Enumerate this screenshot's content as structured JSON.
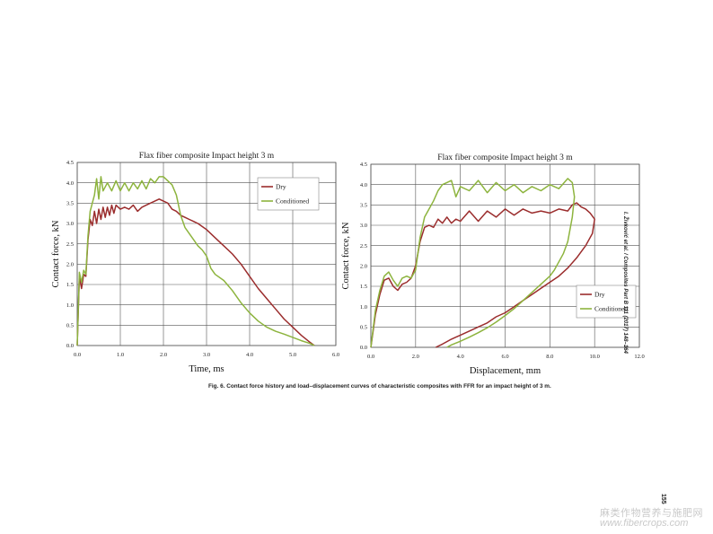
{
  "chart_data": [
    {
      "type": "line",
      "title": "Flax fiber composite Impact height 3 m",
      "xlabel": "Time, ms",
      "ylabel": "Contact force, kN",
      "xlim": [
        0,
        6
      ],
      "ylim": [
        0,
        4.5
      ],
      "xticks": [
        "0.0",
        "1.0",
        "2.0",
        "3.0",
        "4.0",
        "5.0",
        "6.0"
      ],
      "yticks": [
        "0.0",
        "0.5",
        "1.0",
        "1.5",
        "2.0",
        "2.5",
        "3.0",
        "3.5",
        "4.0",
        "4.5"
      ],
      "grid": true,
      "legend": "top-right",
      "series": [
        {
          "name": "Dry",
          "color": "#9b2d2d",
          "x": [
            0,
            0.05,
            0.1,
            0.15,
            0.2,
            0.25,
            0.3,
            0.35,
            0.4,
            0.45,
            0.5,
            0.55,
            0.6,
            0.65,
            0.7,
            0.75,
            0.8,
            0.85,
            0.9,
            1.0,
            1.1,
            1.2,
            1.3,
            1.4,
            1.5,
            1.6,
            1.7,
            1.8,
            1.9,
            2.0,
            2.1,
            2.2,
            2.3,
            2.4,
            2.5,
            2.6,
            2.7,
            2.8,
            3.0,
            3.2,
            3.4,
            3.6,
            3.8,
            4.0,
            4.2,
            4.4,
            4.6,
            4.8,
            5.0,
            5.2,
            5.4,
            5.5
          ],
          "y": [
            0,
            1.7,
            1.4,
            1.75,
            1.7,
            2.6,
            3.1,
            2.95,
            3.3,
            3.0,
            3.35,
            3.1,
            3.4,
            3.15,
            3.4,
            3.2,
            3.45,
            3.25,
            3.45,
            3.35,
            3.4,
            3.35,
            3.45,
            3.3,
            3.4,
            3.45,
            3.5,
            3.55,
            3.6,
            3.55,
            3.5,
            3.35,
            3.3,
            3.2,
            3.15,
            3.1,
            3.05,
            3.0,
            2.85,
            2.65,
            2.45,
            2.25,
            2.0,
            1.7,
            1.4,
            1.15,
            0.9,
            0.65,
            0.45,
            0.25,
            0.08,
            0
          ]
        },
        {
          "name": "Conditioned",
          "color": "#8db43e",
          "x": [
            0,
            0.05,
            0.1,
            0.15,
            0.2,
            0.25,
            0.3,
            0.35,
            0.4,
            0.45,
            0.5,
            0.55,
            0.6,
            0.7,
            0.8,
            0.9,
            1.0,
            1.1,
            1.2,
            1.3,
            1.4,
            1.5,
            1.6,
            1.7,
            1.8,
            1.9,
            2.0,
            2.1,
            2.2,
            2.3,
            2.4,
            2.5,
            2.6,
            2.7,
            2.8,
            2.9,
            3.0,
            3.1,
            3.2,
            3.4,
            3.6,
            3.8,
            4.0,
            4.2,
            4.4,
            4.6,
            4.8,
            5.0,
            5.2,
            5.4,
            5.5
          ],
          "y": [
            0,
            1.8,
            1.55,
            1.85,
            1.75,
            2.7,
            3.3,
            3.5,
            3.7,
            4.1,
            3.6,
            4.15,
            3.8,
            4.0,
            3.8,
            4.05,
            3.8,
            4.0,
            3.8,
            4.0,
            3.85,
            4.05,
            3.85,
            4.1,
            4.0,
            4.15,
            4.15,
            4.05,
            3.95,
            3.7,
            3.2,
            2.9,
            2.75,
            2.6,
            2.45,
            2.35,
            2.2,
            1.9,
            1.75,
            1.6,
            1.35,
            1.05,
            0.8,
            0.6,
            0.45,
            0.35,
            0.28,
            0.2,
            0.12,
            0.05,
            0
          ]
        }
      ]
    },
    {
      "type": "line",
      "title": "Flax fiber composite Impact height 3 m",
      "xlabel": "Displacement, mm",
      "ylabel": "Contact force, kN",
      "xlim": [
        0,
        12
      ],
      "ylim": [
        0,
        4.5
      ],
      "xticks": [
        "0.0",
        "2.0",
        "4.0",
        "6.0",
        "8.0",
        "10.0",
        "12.0"
      ],
      "yticks": [
        "0.0",
        "0.5",
        "1.0",
        "1.5",
        "2.0",
        "2.5",
        "3.0",
        "3.5",
        "4.0",
        "4.5"
      ],
      "grid": true,
      "legend": "right",
      "series": [
        {
          "name": "Dry",
          "color": "#9b2d2d",
          "x": [
            0,
            0.2,
            0.4,
            0.6,
            0.8,
            1.0,
            1.2,
            1.4,
            1.6,
            1.8,
            2.0,
            2.2,
            2.4,
            2.6,
            2.8,
            3.0,
            3.2,
            3.4,
            3.6,
            3.8,
            4.0,
            4.4,
            4.8,
            5.2,
            5.6,
            6.0,
            6.4,
            6.8,
            7.2,
            7.6,
            8.0,
            8.4,
            8.8,
            9.0,
            9.2,
            9.4,
            9.6,
            9.8,
            10.0,
            9.9,
            9.6,
            9.2,
            8.8,
            8.4,
            8.0,
            7.6,
            7.2,
            6.8,
            6.4,
            6.0,
            5.6,
            5.2,
            4.8,
            4.4,
            4.0,
            3.6,
            3.2,
            2.9
          ],
          "y": [
            0,
            0.8,
            1.3,
            1.65,
            1.7,
            1.5,
            1.4,
            1.55,
            1.6,
            1.7,
            2.0,
            2.6,
            2.95,
            3.0,
            2.95,
            3.15,
            3.05,
            3.2,
            3.05,
            3.15,
            3.1,
            3.35,
            3.1,
            3.35,
            3.2,
            3.4,
            3.25,
            3.4,
            3.3,
            3.35,
            3.3,
            3.4,
            3.35,
            3.5,
            3.55,
            3.45,
            3.4,
            3.3,
            3.15,
            2.8,
            2.5,
            2.2,
            1.95,
            1.75,
            1.6,
            1.45,
            1.3,
            1.15,
            1.0,
            0.85,
            0.75,
            0.6,
            0.5,
            0.4,
            0.3,
            0.2,
            0.08,
            0
          ]
        },
        {
          "name": "Conditioned",
          "color": "#8db43e",
          "x": [
            0,
            0.2,
            0.4,
            0.6,
            0.8,
            1.0,
            1.2,
            1.4,
            1.6,
            1.8,
            2.0,
            2.2,
            2.4,
            2.6,
            2.8,
            3.0,
            3.2,
            3.4,
            3.6,
            3.8,
            4.0,
            4.4,
            4.8,
            5.2,
            5.6,
            6.0,
            6.4,
            6.8,
            7.2,
            7.6,
            8.0,
            8.4,
            8.8,
            9.0,
            9.1,
            9.0,
            8.8,
            8.6,
            8.4,
            8.2,
            8.0,
            7.6,
            7.2,
            6.8,
            6.4,
            6.0,
            5.6,
            5.2,
            4.8,
            4.4,
            4.0,
            3.6,
            3.4
          ],
          "y": [
            0,
            0.9,
            1.4,
            1.75,
            1.85,
            1.65,
            1.5,
            1.7,
            1.75,
            1.7,
            1.9,
            2.7,
            3.2,
            3.4,
            3.6,
            3.85,
            4.0,
            4.05,
            4.1,
            3.7,
            3.95,
            3.85,
            4.1,
            3.8,
            4.05,
            3.85,
            4.0,
            3.8,
            3.95,
            3.85,
            4.0,
            3.9,
            4.15,
            4.05,
            3.7,
            3.2,
            2.6,
            2.3,
            2.1,
            1.9,
            1.75,
            1.55,
            1.35,
            1.15,
            0.95,
            0.78,
            0.62,
            0.48,
            0.36,
            0.25,
            0.15,
            0.06,
            0
          ]
        }
      ]
    }
  ],
  "caption": "Fig. 6. Contact force history and load–displacement curves of characteristic composites with FFR for an impact height of 3 m.",
  "side_journal": "I. Živković et al. / Composites Part B 111 (2017) 148–164",
  "page_number": "155",
  "watermark_line1": "麻类作物营养与施肥网",
  "watermark_line2": "www.fibercrops.com"
}
